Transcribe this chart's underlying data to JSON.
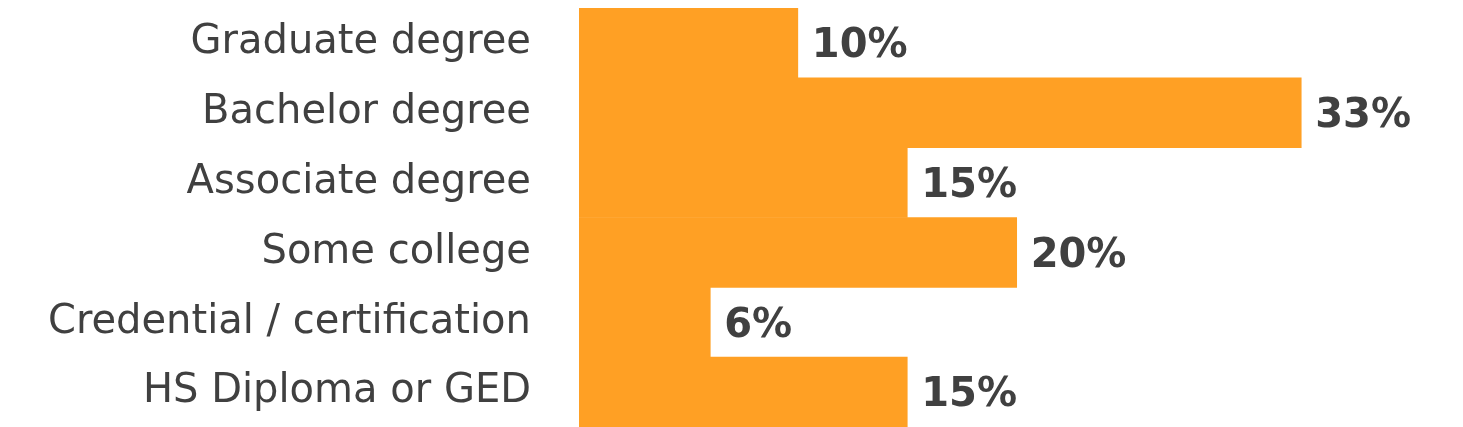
{
  "chart_data": {
    "type": "bar",
    "orientation": "horizontal",
    "categories": [
      "Graduate degree",
      "Bachelor degree",
      "Associate degree",
      "Some college",
      "Credential / certification",
      "HS Diploma or GED"
    ],
    "values": [
      10,
      33,
      15,
      20,
      6,
      15
    ],
    "value_labels": [
      "10%",
      "33%",
      "15%",
      "20%",
      "6%",
      "15%"
    ],
    "color": "#ffa024",
    "legend": false
  }
}
